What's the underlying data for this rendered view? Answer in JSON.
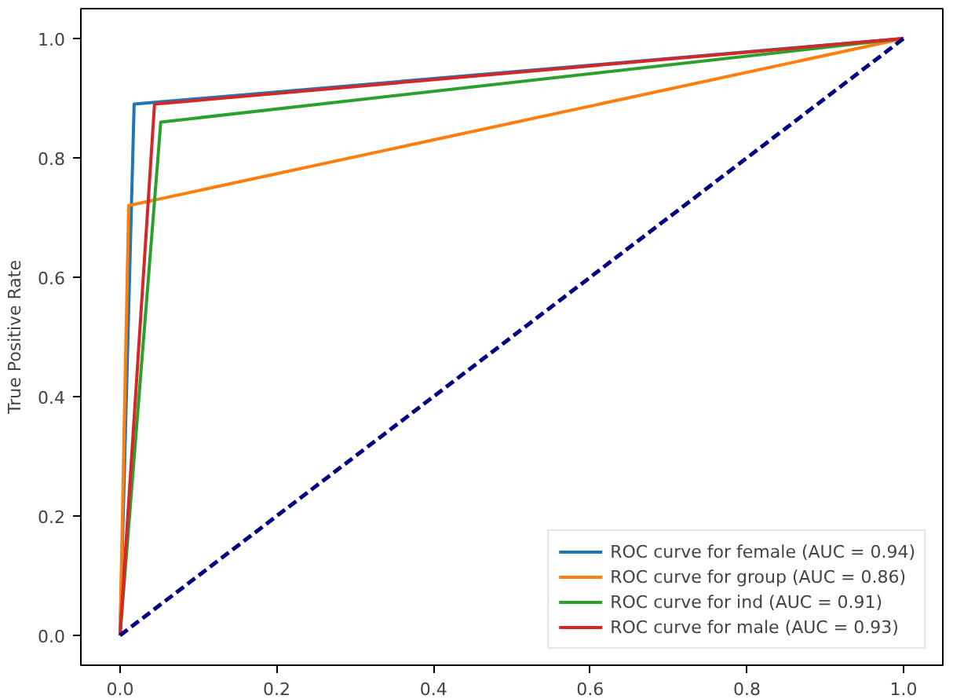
{
  "chart_data": {
    "type": "line",
    "ylabel": "True Positive Rate",
    "xlim": [
      -0.05,
      1.05
    ],
    "ylim": [
      -0.05,
      1.05
    ],
    "xticks": [
      {
        "value": 0,
        "label": "0.0"
      },
      {
        "value": 0.2,
        "label": "0.2"
      },
      {
        "value": 0.4,
        "label": "0.4"
      },
      {
        "value": 0.6,
        "label": "0.6"
      },
      {
        "value": 0.8,
        "label": "0.8"
      },
      {
        "value": 1,
        "label": "1.0"
      }
    ],
    "yticks": [
      {
        "value": 0,
        "label": "0.0"
      },
      {
        "value": 0.2,
        "label": "0.2"
      },
      {
        "value": 0.4,
        "label": "0.4"
      },
      {
        "value": 0.6,
        "label": "0.6"
      },
      {
        "value": 0.8,
        "label": "0.8"
      },
      {
        "value": 1,
        "label": "1.0"
      }
    ],
    "legend": "bottom right",
    "grid": false,
    "series": [
      {
        "name": "ROC curve for female (AUC = 0.94)",
        "color": "#1f77b4",
        "x": [
          0,
          0.018,
          1
        ],
        "values": [
          0,
          0.89,
          1
        ]
      },
      {
        "name": "ROC curve for group (AUC = 0.86)",
        "color": "#ff7f0e",
        "x": [
          0,
          0.011,
          1
        ],
        "values": [
          0,
          0.72,
          1
        ]
      },
      {
        "name": "ROC curve for ind (AUC = 0.91)",
        "color": "#2ca02c",
        "x": [
          0,
          0.052,
          1
        ],
        "values": [
          0,
          0.86,
          1
        ]
      },
      {
        "name": "ROC curve for male (AUC = 0.93)",
        "color": "#d62728",
        "x": [
          0,
          0.044,
          1
        ],
        "values": [
          0,
          0.89,
          1
        ]
      },
      {
        "color": "#000080",
        "x": [
          0,
          1
        ],
        "values": [
          0,
          1
        ],
        "line_style": "dashed"
      }
    ]
  }
}
